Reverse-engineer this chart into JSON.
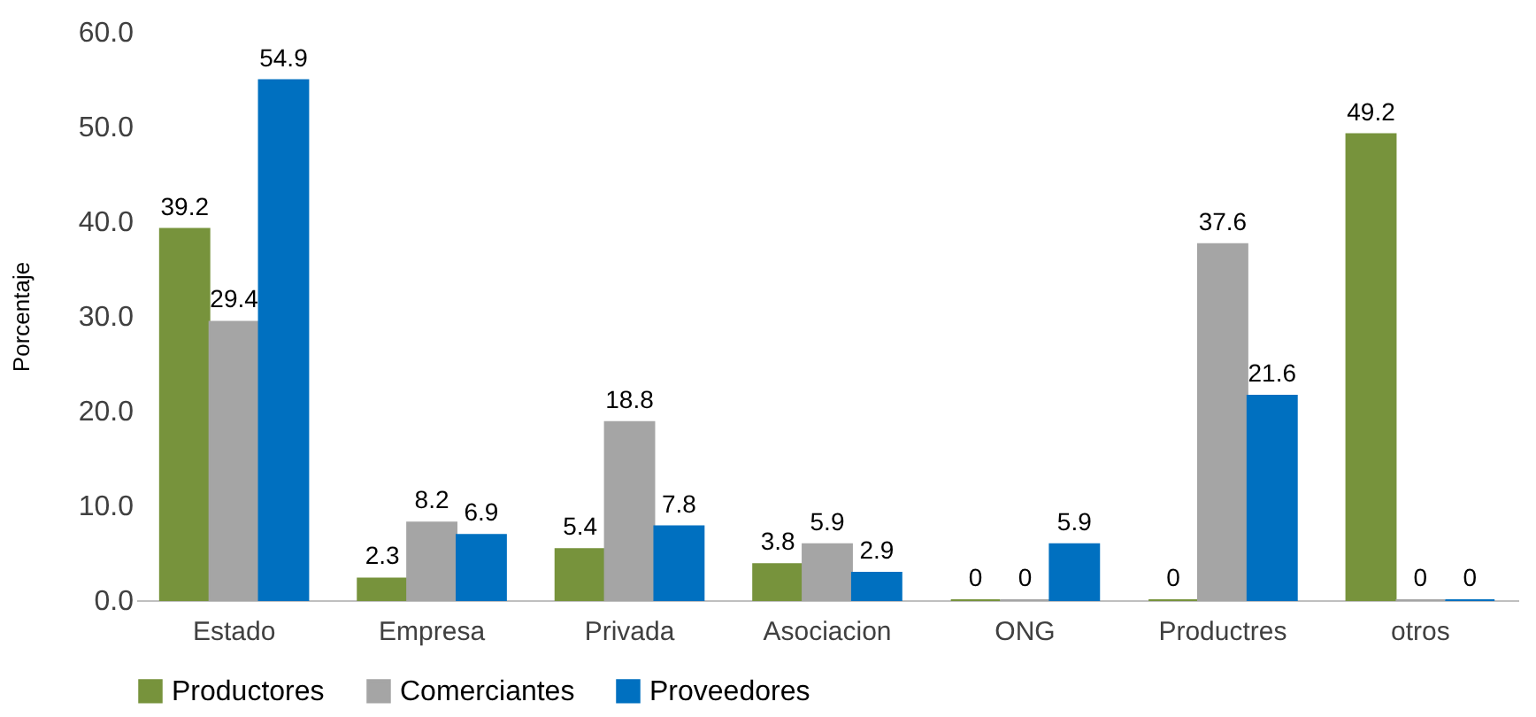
{
  "chart_data": {
    "type": "bar",
    "ylabel": "Porcentaje",
    "categories": [
      "Estado",
      "Empresa",
      "Privada",
      "Asociacion",
      "ONG",
      "Productres",
      "otros"
    ],
    "series": [
      {
        "name": "Productores",
        "color": "#77933c",
        "values": [
          39.2,
          2.3,
          5.4,
          3.8,
          0,
          0,
          49.2
        ]
      },
      {
        "name": "Comerciantes",
        "color": "#a5a5a5",
        "values": [
          29.4,
          8.2,
          18.8,
          5.9,
          0,
          37.6,
          0
        ]
      },
      {
        "name": "Proveedores",
        "color": "#0070c0",
        "values": [
          54.9,
          6.9,
          7.8,
          2.9,
          5.9,
          21.6,
          0
        ]
      }
    ],
    "ylim": [
      0,
      60
    ],
    "yticks": [
      {
        "value": 0,
        "label": "0.0"
      },
      {
        "value": 10,
        "label": "10.0"
      },
      {
        "value": 20,
        "label": "20.0"
      },
      {
        "value": 30,
        "label": "30.0"
      },
      {
        "value": 40,
        "label": "40.0"
      },
      {
        "value": 50,
        "label": "50.0"
      },
      {
        "value": 60,
        "label": "60.0"
      }
    ],
    "data_labels": true,
    "grid": false,
    "legend": "bottom"
  }
}
